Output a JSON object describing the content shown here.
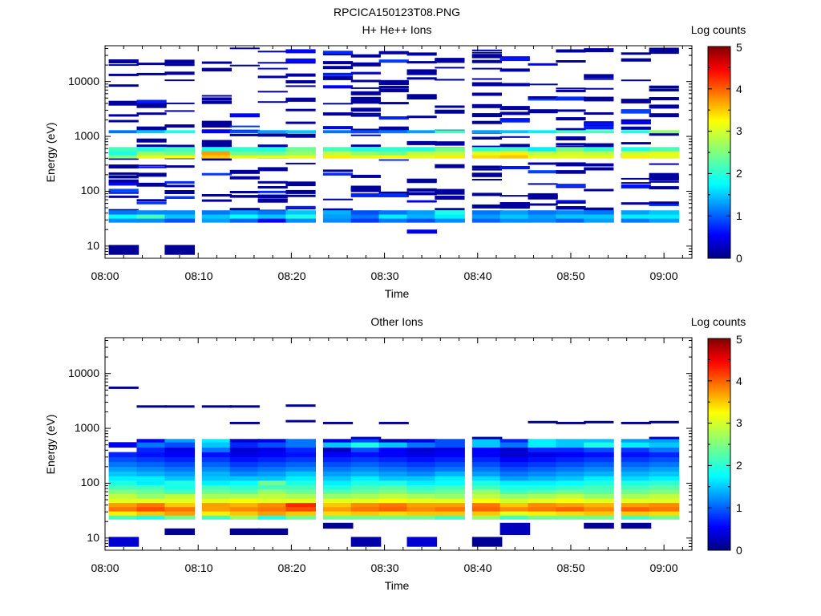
{
  "figure_title": "RPCICA150123T08.PNG",
  "chart_data": [
    {
      "type": "heatmap",
      "title": "H+ He++ Ions",
      "xlabel": "Time",
      "ylabel": "Energy (eV)",
      "x_ticks": [
        "08:00",
        "08:10",
        "08:20",
        "08:30",
        "08:40",
        "08:50",
        "09:00"
      ],
      "x_range": [
        "08:00",
        "09:03"
      ],
      "y_scale": "log",
      "y_ticks": [
        10,
        100,
        1000,
        10000
      ],
      "y_range": [
        6,
        45000
      ],
      "colorbar": {
        "label": "Log counts",
        "range": [
          0,
          5
        ],
        "ticks": [
          "0",
          "1",
          "2",
          "3",
          "4",
          "5"
        ]
      },
      "time_bins": [
        "08:02",
        "08:05",
        "08:08",
        "08:12",
        "08:15",
        "08:18",
        "08:21",
        "08:25",
        "08:28",
        "08:31",
        "08:34",
        "08:37",
        "08:41",
        "08:44",
        "08:47",
        "08:50",
        "08:53",
        "08:57",
        "09:00"
      ],
      "bands": [
        {
          "e_low": 7,
          "e_high": 10.5,
          "levels": [
            0.1,
            null,
            0.1,
            null,
            null,
            null,
            null,
            null,
            null,
            null,
            null,
            null,
            null,
            null,
            null,
            null,
            null,
            null,
            null
          ]
        },
        {
          "e_low": 17,
          "e_high": 20,
          "levels": [
            null,
            null,
            null,
            null,
            null,
            null,
            null,
            null,
            null,
            null,
            0.5,
            null,
            null,
            null,
            null,
            null,
            null,
            null,
            null
          ]
        },
        {
          "e_low": 27,
          "e_high": 32,
          "levels": [
            1.3,
            1.3,
            1.0,
            1.4,
            1.1,
            0.6,
            1.3,
            1.3,
            0.9,
            1.2,
            1.0,
            1.3,
            1.1,
            1.3,
            1.3,
            1.1,
            1.4,
            1.2,
            1.4
          ]
        },
        {
          "e_low": 32,
          "e_high": 38,
          "levels": [
            1.9,
            2.2,
            1.6,
            1.6,
            1.9,
            1.6,
            2.0,
            1.4,
            1.2,
            1.8,
            1.5,
            1.8,
            1.4,
            1.6,
            1.4,
            1.6,
            1.6,
            1.8,
            1.8
          ]
        },
        {
          "e_low": 38,
          "e_high": 45,
          "levels": [
            1.2,
            1.3,
            1.3,
            1.2,
            1.4,
            1.2,
            1.6,
            1.5,
            1.0,
            1.2,
            1.4,
            2.0,
            1.2,
            1.4,
            1.2,
            1.3,
            1.2,
            1.4,
            1.6
          ]
        },
        {
          "e_low": 400,
          "e_high": 460,
          "levels": [
            2.5,
            3.0,
            3.1,
            3.4,
            3.0,
            3.0,
            3.0,
            3.2,
            3.0,
            3.1,
            3.0,
            3.2,
            3.3,
            3.4,
            3.0,
            3.0,
            3.0,
            3.2,
            3.0
          ]
        },
        {
          "e_low": 460,
          "e_high": 540,
          "levels": [
            2.0,
            2.6,
            2.4,
            3.6,
            2.4,
            2.4,
            2.6,
            2.8,
            2.6,
            2.4,
            2.8,
            2.8,
            3.0,
            3.2,
            2.8,
            2.9,
            2.8,
            2.9,
            3.0
          ]
        },
        {
          "e_low": 540,
          "e_high": 640,
          "levels": [
            2.2,
            2.0,
            2.2,
            2.0,
            2.1,
            2.0,
            2.4,
            2.2,
            2.0,
            2.1,
            2.0,
            2.4,
            2.1,
            2.2,
            1.8,
            2.4,
            2.1,
            2.0,
            2.2
          ]
        },
        {
          "e_low": 1150,
          "e_high": 1300,
          "levels": [
            1.2,
            1.6,
            2.0,
            0.6,
            1.0,
            1.4,
            1.6,
            1.2,
            1.0,
            1.2,
            1.4,
            2.2,
            1.4,
            1.6,
            1.8,
            2.2,
            2.2,
            2.0,
            2.6
          ]
        }
      ],
      "sparse_level": 0.1
    },
    {
      "type": "heatmap",
      "title": "Other Ions",
      "xlabel": "Time",
      "ylabel": "Energy (eV)",
      "x_ticks": [
        "08:00",
        "08:10",
        "08:20",
        "08:30",
        "08:40",
        "08:50",
        "09:00"
      ],
      "x_range": [
        "08:00",
        "09:03"
      ],
      "y_scale": "log",
      "y_ticks": [
        10,
        100,
        1000,
        10000
      ],
      "y_range": [
        6,
        45000
      ],
      "colorbar": {
        "label": "Log counts",
        "range": [
          0,
          5
        ],
        "ticks": [
          "0",
          "1",
          "2",
          "3",
          "4",
          "5"
        ]
      },
      "time_bins": [
        "08:02",
        "08:05",
        "08:08",
        "08:12",
        "08:15",
        "08:18",
        "08:21",
        "08:25",
        "08:28",
        "08:31",
        "08:34",
        "08:37",
        "08:41",
        "08:44",
        "08:47",
        "08:50",
        "08:53",
        "08:57",
        "09:00"
      ],
      "bands": [
        {
          "e_low": 7,
          "e_high": 10.5,
          "levels": [
            0.4,
            null,
            null,
            null,
            null,
            null,
            null,
            null,
            0.2,
            null,
            0.4,
            null,
            0.1,
            null,
            null,
            null,
            null,
            null,
            null
          ]
        },
        {
          "e_low": 11.5,
          "e_high": 15,
          "levels": [
            null,
            null,
            0.1,
            null,
            0.1,
            0.1,
            null,
            null,
            null,
            null,
            null,
            null,
            null,
            0.3,
            null,
            null,
            null,
            null,
            null
          ]
        },
        {
          "e_low": 15,
          "e_high": 19,
          "levels": [
            null,
            null,
            null,
            null,
            null,
            null,
            null,
            0.1,
            null,
            null,
            null,
            null,
            null,
            0.3,
            null,
            null,
            0.1,
            0.1,
            null
          ]
        },
        {
          "e_low": 22,
          "e_high": 26,
          "levels": [
            2.2,
            2.0,
            2.4,
            2.2,
            2.6,
            2.0,
            2.4,
            2.4,
            2.4,
            2.4,
            2.4,
            2.2,
            2.6,
            2.2,
            2.4,
            2.4,
            2.4,
            2.2,
            2.4
          ]
        },
        {
          "e_low": 26,
          "e_high": 31,
          "levels": [
            3.2,
            3.4,
            3.6,
            3.2,
            3.4,
            3.6,
            3.4,
            3.3,
            3.4,
            3.3,
            3.4,
            3.4,
            3.4,
            3.0,
            3.2,
            3.3,
            3.4,
            3.4,
            3.3
          ]
        },
        {
          "e_low": 31,
          "e_high": 37,
          "levels": [
            3.8,
            4.0,
            3.8,
            3.6,
            3.7,
            3.8,
            4.0,
            3.6,
            3.8,
            3.9,
            3.7,
            3.8,
            3.9,
            3.7,
            3.8,
            3.9,
            3.7,
            3.9,
            3.8
          ]
        },
        {
          "e_low": 37,
          "e_high": 44,
          "levels": [
            3.6,
            3.8,
            3.4,
            3.6,
            3.5,
            3.7,
            4.2,
            3.4,
            3.7,
            3.8,
            3.6,
            3.6,
            3.8,
            3.4,
            3.7,
            3.6,
            3.5,
            3.6,
            3.7
          ]
        },
        {
          "e_low": 44,
          "e_high": 53,
          "levels": [
            3.0,
            3.0,
            3.0,
            3.0,
            3.1,
            3.0,
            3.0,
            3.0,
            3.0,
            3.1,
            3.0,
            3.0,
            3.1,
            2.9,
            3.0,
            3.1,
            3.0,
            3.0,
            3.0
          ]
        },
        {
          "e_low": 53,
          "e_high": 64,
          "levels": [
            2.8,
            2.6,
            2.8,
            2.7,
            2.7,
            2.8,
            2.7,
            2.6,
            2.7,
            2.8,
            2.7,
            2.6,
            2.8,
            2.6,
            2.7,
            2.8,
            2.6,
            2.7,
            2.8
          ]
        },
        {
          "e_low": 64,
          "e_high": 77,
          "levels": [
            2.5,
            2.4,
            2.2,
            2.4,
            2.3,
            2.6,
            2.4,
            2.3,
            2.4,
            2.5,
            2.3,
            2.4,
            2.6,
            2.2,
            2.3,
            2.4,
            2.3,
            2.4,
            2.5
          ]
        },
        {
          "e_low": 77,
          "e_high": 93,
          "levels": [
            2.2,
            2.2,
            2.0,
            2.2,
            2.1,
            2.2,
            2.2,
            2.0,
            2.2,
            2.3,
            2.1,
            2.2,
            2.2,
            2.0,
            2.0,
            2.1,
            2.2,
            2.2,
            2.3
          ]
        },
        {
          "e_low": 93,
          "e_high": 112,
          "levels": [
            2.0,
            1.8,
            2.0,
            1.8,
            1.9,
            2.4,
            2.0,
            1.8,
            2.0,
            2.0,
            1.8,
            1.9,
            2.0,
            1.8,
            1.8,
            1.9,
            2.0,
            2.0,
            2.1
          ]
        },
        {
          "e_low": 112,
          "e_high": 135,
          "levels": [
            1.8,
            1.8,
            1.6,
            1.6,
            1.6,
            1.6,
            1.8,
            1.6,
            1.8,
            1.6,
            1.6,
            1.8,
            1.7,
            1.4,
            1.5,
            1.6,
            1.8,
            1.7,
            1.8
          ]
        },
        {
          "e_low": 135,
          "e_high": 165,
          "levels": [
            1.6,
            1.5,
            1.4,
            1.5,
            1.3,
            1.4,
            1.6,
            1.4,
            1.5,
            1.4,
            1.3,
            1.5,
            1.4,
            1.2,
            1.3,
            1.4,
            1.5,
            1.5,
            1.6
          ]
        },
        {
          "e_low": 165,
          "e_high": 200,
          "levels": [
            1.4,
            1.3,
            1.2,
            1.3,
            1.1,
            1.2,
            1.3,
            1.2,
            1.3,
            1.2,
            1.1,
            1.2,
            1.2,
            1.0,
            1.1,
            1.2,
            1.3,
            1.3,
            1.4
          ]
        },
        {
          "e_low": 200,
          "e_high": 245,
          "levels": [
            1.2,
            1.1,
            1.0,
            1.1,
            0.9,
            1.0,
            1.1,
            1.0,
            1.1,
            1.0,
            0.9,
            1.0,
            1.0,
            0.8,
            0.9,
            1.0,
            1.1,
            1.1,
            1.2
          ]
        },
        {
          "e_low": 245,
          "e_high": 300,
          "levels": [
            1.0,
            0.9,
            0.8,
            0.9,
            0.7,
            0.8,
            0.9,
            0.8,
            0.9,
            0.8,
            0.7,
            0.8,
            0.8,
            0.6,
            0.7,
            0.8,
            0.9,
            0.9,
            1.0
          ]
        },
        {
          "e_low": 300,
          "e_high": 370,
          "levels": [
            0.8,
            0.7,
            0.6,
            0.7,
            0.5,
            0.6,
            0.7,
            0.6,
            0.7,
            0.6,
            0.5,
            0.6,
            0.6,
            0.4,
            0.5,
            0.6,
            0.7,
            0.7,
            0.8
          ]
        },
        {
          "e_low": 370,
          "e_high": 450,
          "levels": [
            null,
            0.8,
            0.5,
            1.2,
            0.4,
            0.5,
            0.8,
            0.3,
            1.0,
            0.6,
            0.4,
            0.5,
            0.6,
            0.4,
            0.8,
            0.8,
            1.0,
            0.9,
            1.2
          ]
        },
        {
          "e_low": 450,
          "e_high": 560,
          "levels": [
            0.6,
            1.2,
            1.0,
            1.6,
            0.8,
            1.0,
            1.2,
            1.6,
            2.0,
            1.6,
            1.2,
            1.0,
            1.6,
            1.2,
            1.8,
            1.6,
            2.0,
            1.8,
            1.6
          ]
        },
        {
          "e_low": 560,
          "e_high": 640,
          "levels": [
            null,
            0.6,
            1.4,
            1.8,
            0.4,
            0.5,
            1.2,
            0.5,
            1.0,
            0.3,
            0.5,
            1.0,
            1.6,
            0.8,
            1.8,
            1.6,
            1.6,
            1.4,
            1.4
          ]
        },
        {
          "e_low": 640,
          "e_high": 700,
          "levels": [
            null,
            null,
            null,
            null,
            null,
            null,
            null,
            null,
            0.4,
            null,
            null,
            null,
            0.3,
            null,
            null,
            null,
            null,
            null,
            0.4
          ]
        }
      ],
      "sparse_level": 0.1,
      "sparse": [
        {
          "time": "08:02",
          "e": 5500
        },
        {
          "time": "08:02",
          "e": 520
        },
        {
          "time": "08:05",
          "e": 2500
        },
        {
          "time": "08:08",
          "e": 2500
        },
        {
          "time": "08:12",
          "e": 2500
        },
        {
          "time": "08:15",
          "e": 2500
        },
        {
          "time": "08:15",
          "e": 1250
        },
        {
          "time": "08:21",
          "e": 2600
        },
        {
          "time": "08:21",
          "e": 1350
        },
        {
          "time": "08:25",
          "e": 1250
        },
        {
          "time": "08:31",
          "e": 1250
        },
        {
          "time": "08:47",
          "e": 1300
        },
        {
          "time": "08:50",
          "e": 1250
        },
        {
          "time": "08:53",
          "e": 1300
        },
        {
          "time": "08:57",
          "e": 1250
        },
        {
          "time": "09:00",
          "e": 1300
        }
      ]
    }
  ]
}
